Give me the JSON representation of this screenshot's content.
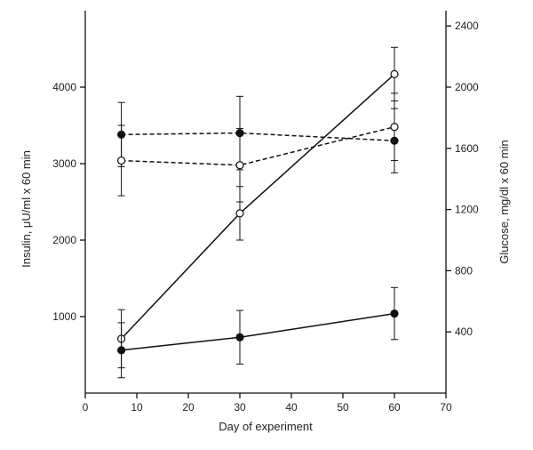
{
  "chart_data": {
    "type": "line",
    "xlabel": "Day of experiment",
    "ylabel_left": "Insulin, μU/ml x 60 min",
    "ylabel_right": "Glucose, mg/dl x 60 min",
    "xlim": [
      0,
      70
    ],
    "ylim_left": [
      0,
      5000
    ],
    "ylim_right": [
      0,
      2500
    ],
    "x_ticks": [
      "0",
      "10",
      "20",
      "30",
      "40",
      "50",
      "60",
      "70"
    ],
    "y_left_ticks": [
      "1000",
      "2000",
      "3000",
      "4000"
    ],
    "y_right_ticks": [
      "400",
      "800",
      "1200",
      "1600",
      "2000",
      "2400"
    ],
    "grid": false,
    "legend": "none",
    "series": [
      {
        "axis": "left",
        "style": "solid",
        "marker": "open",
        "x": [
          7,
          30,
          60
        ],
        "y": [
          710,
          2350,
          4170
        ],
        "err": [
          380,
          350,
          350
        ]
      },
      {
        "axis": "left",
        "style": "solid",
        "marker": "filled",
        "x": [
          7,
          30,
          60
        ],
        "y": [
          560,
          730,
          1040
        ],
        "err": [
          360,
          350,
          340
        ]
      },
      {
        "axis": "right",
        "style": "dashed",
        "marker": "filled",
        "x": [
          7,
          30,
          60
        ],
        "y": [
          1690,
          1700,
          1650
        ],
        "err": [
          210,
          240,
          210
        ]
      },
      {
        "axis": "right",
        "style": "dashed",
        "marker": "open",
        "x": [
          7,
          30,
          60
        ],
        "y": [
          1520,
          1490,
          1740
        ],
        "err": [
          230,
          240,
          220
        ]
      }
    ]
  }
}
